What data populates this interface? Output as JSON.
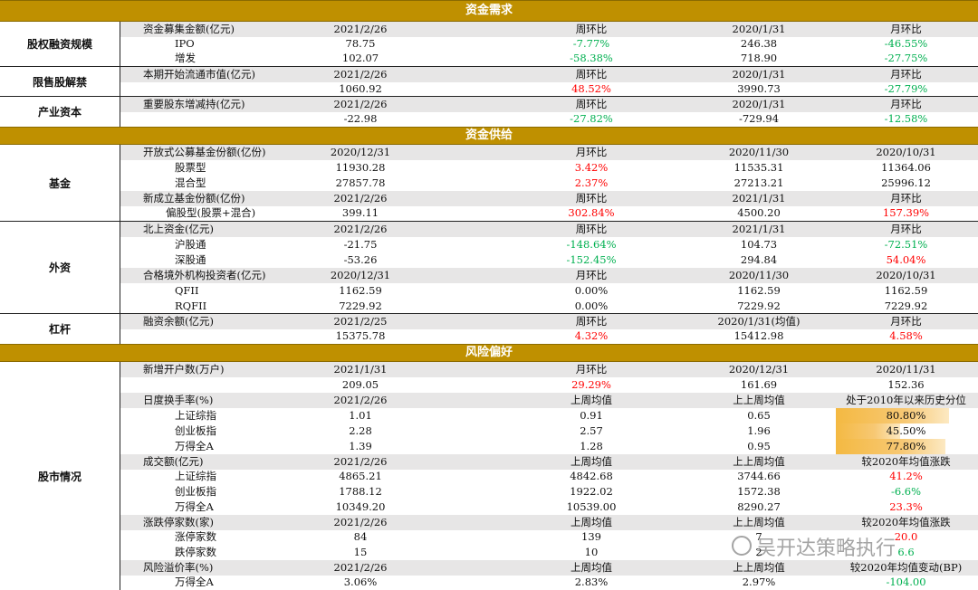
{
  "sections": {
    "demand": "资金需求",
    "supply": "资金供给",
    "risk": "风险偏好"
  },
  "groups": {
    "equity_financing": "股权融资规模",
    "lockup": "限售股解禁",
    "industrial_capital": "产业资本",
    "fund": "基金",
    "foreign": "外资",
    "leverage": "杠杆",
    "stock_market": "股市情况"
  },
  "rows": [
    [
      "资金募集金额(亿元)",
      "2021/2/26",
      "周环比",
      "2020/1/31",
      "月环比"
    ],
    [
      "IPO",
      "78.75",
      "-7.77%",
      "246.38",
      "-46.55%"
    ],
    [
      "增发",
      "102.07",
      "-58.38%",
      "718.90",
      "-27.75%"
    ],
    [
      "本期开始流通市值(亿元)",
      "2021/2/26",
      "周环比",
      "2020/1/31",
      "月环比"
    ],
    [
      "",
      "1060.92",
      "48.52%",
      "3990.73",
      "-27.79%"
    ],
    [
      "重要股东增减持(亿元)",
      "2021/2/26",
      "周环比",
      "2020/1/31",
      "月环比"
    ],
    [
      "",
      "-22.98",
      "-27.82%",
      "-729.94",
      "-12.58%"
    ],
    [
      "开放式公募基金份额(亿份)",
      "2020/12/31",
      "月环比",
      "2020/11/30",
      "2020/10/31"
    ],
    [
      "股票型",
      "11930.28",
      "3.42%",
      "11535.31",
      "11364.06"
    ],
    [
      "混合型",
      "27857.78",
      "2.37%",
      "27213.21",
      "25996.12"
    ],
    [
      "新成立基金份额(亿份)",
      "2021/2/26",
      "周环比",
      "2021/1/31",
      "月环比"
    ],
    [
      "偏股型(股票+混合)",
      "399.11",
      "302.84%",
      "4500.20",
      "157.39%"
    ],
    [
      "北上资金(亿元)",
      "2021/2/26",
      "周环比",
      "2021/1/31",
      "月环比"
    ],
    [
      "沪股通",
      "-21.75",
      "-148.64%",
      "104.73",
      "-72.51%"
    ],
    [
      "深股通",
      "-53.26",
      "-152.45%",
      "294.84",
      "54.04%"
    ],
    [
      "合格境外机构投资者(亿元)",
      "2020/12/31",
      "月环比",
      "2020/11/30",
      "2020/10/31"
    ],
    [
      "QFII",
      "1162.59",
      "0.00%",
      "1162.59",
      "1162.59"
    ],
    [
      "RQFII",
      "7229.92",
      "0.00%",
      "7229.92",
      "7229.92"
    ],
    [
      "融资余额(亿元)",
      "2021/2/25",
      "周环比",
      "2020/1/31(均值)",
      "月环比"
    ],
    [
      "",
      "15375.78",
      "4.32%",
      "15412.98",
      "4.58%"
    ],
    [
      "新增开户数(万户)",
      "2021/1/31",
      "月环比",
      "2020/12/31",
      "2020/11/31"
    ],
    [
      "",
      "209.05",
      "29.29%",
      "161.69",
      "152.36"
    ],
    [
      "日度换手率(%)",
      "2021/2/26",
      "上周均值",
      "上上周均值",
      "处于2010年以来历史分位"
    ],
    [
      "上证综指",
      "1.01",
      "0.91",
      "0.65",
      "80.80%"
    ],
    [
      "创业板指",
      "2.28",
      "2.57",
      "1.96",
      "45.50%"
    ],
    [
      "万得全A",
      "1.39",
      "1.28",
      "0.95",
      "77.80%"
    ],
    [
      "成交额(亿元)",
      "2021/2/26",
      "上周均值",
      "上上周均值",
      "较2020年均值涨跌"
    ],
    [
      "上证综指",
      "4865.21",
      "4842.68",
      "3744.66",
      "41.2%"
    ],
    [
      "创业板指",
      "1788.12",
      "1922.02",
      "1572.38",
      "-6.6%"
    ],
    [
      "万得全A",
      "10349.20",
      "10539.00",
      "8290.27",
      "23.3%"
    ],
    [
      "涨跌停家数(家)",
      "2021/2/26",
      "上周均值",
      "上上周均值",
      "较2020年均值涨跌"
    ],
    [
      "涨停家数",
      "84",
      "139",
      "7",
      "20.0"
    ],
    [
      "跌停家数",
      "15",
      "10",
      "2",
      "6.6"
    ],
    [
      "风险溢价率(%)",
      "2021/2/26",
      "上周均值",
      "上上周均值",
      "较2020年均值变动(BP)"
    ],
    [
      "万得全A",
      "3.06%",
      "2.83%",
      "2.97%",
      "-104.00"
    ]
  ],
  "percentile_fill": [
    0.808,
    0.455,
    0.778
  ],
  "watermark": "吴开达策略执行",
  "colors": {
    "band": "#bf9000",
    "header_row": "#e7e6e6",
    "up": "#ff0000",
    "down": "#00b050"
  }
}
